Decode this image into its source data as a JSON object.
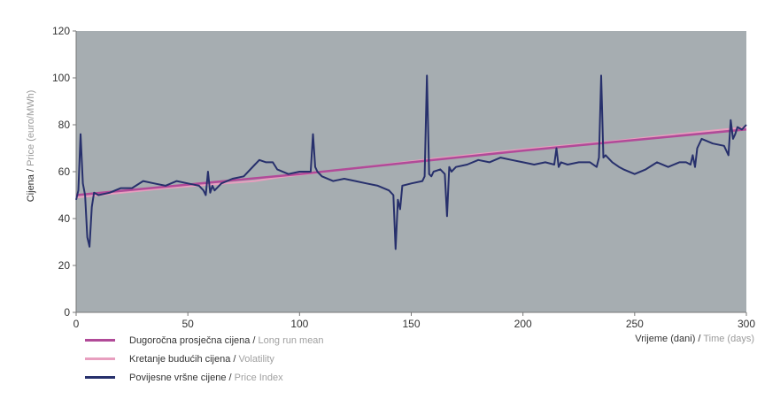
{
  "colors": {
    "plot_bg": "#a6adb1",
    "mean": "#b14a98",
    "volatility": "#e89fbf",
    "index": "#27306c"
  },
  "chart_data": {
    "type": "line",
    "xlabel": {
      "hr": "Vrijeme (dani)",
      "sep": " / ",
      "en": "Time (days)"
    },
    "ylabel": {
      "hr": "Cijena",
      "sep": " / ",
      "en": "Price (euro/MWh)"
    },
    "xlim": [
      0,
      300
    ],
    "ylim": [
      0,
      120
    ],
    "xticks": [
      "0",
      "50",
      "100",
      "150",
      "200",
      "250",
      "300"
    ],
    "yticks": [
      "0",
      "20",
      "40",
      "60",
      "80",
      "100",
      "120"
    ],
    "grid": false,
    "legend_position": "bottom-left",
    "series": [
      {
        "key": "mean",
        "name_hr": "Dugoročna prosječna cijena",
        "name_en": "Long run mean",
        "x": [
          0,
          50,
          100,
          150,
          200,
          250,
          300
        ],
        "y": [
          50,
          54.5,
          59,
          64,
          69,
          73.5,
          78
        ]
      },
      {
        "key": "volatility",
        "name_hr": "Kretanje budućih cijena",
        "name_en": "Volatility",
        "x": [
          0,
          40,
          80,
          90,
          120,
          160,
          200,
          240,
          280,
          300
        ],
        "y": [
          49,
          53,
          56,
          57.5,
          61,
          65.5,
          69.5,
          73,
          77,
          79
        ]
      },
      {
        "key": "index",
        "name_hr": "Povijesne vršne cijene",
        "name_en": "Price Index",
        "x": [
          0,
          1,
          2,
          3,
          4,
          5,
          6,
          7,
          8,
          10,
          15,
          20,
          25,
          30,
          35,
          40,
          45,
          50,
          55,
          57,
          58,
          59,
          60,
          61,
          62,
          65,
          70,
          75,
          80,
          82,
          85,
          88,
          90,
          95,
          100,
          103,
          105,
          106,
          107,
          108,
          110,
          115,
          120,
          125,
          130,
          135,
          140,
          142,
          143,
          144,
          145,
          146,
          150,
          155,
          156,
          157,
          158,
          159,
          160,
          163,
          165,
          166,
          167,
          168,
          170,
          175,
          180,
          185,
          190,
          195,
          200,
          205,
          210,
          214,
          215,
          216,
          217,
          220,
          225,
          230,
          233,
          234,
          235,
          236,
          237,
          240,
          243,
          245,
          250,
          255,
          260,
          265,
          270,
          273,
          275,
          276,
          277,
          278,
          280,
          285,
          290,
          292,
          293,
          294,
          295,
          296,
          298,
          300
        ],
        "y": [
          48,
          52,
          76,
          55,
          50,
          32,
          28,
          45,
          51,
          50,
          51,
          53,
          53,
          56,
          55,
          54,
          56,
          55,
          54,
          52,
          50,
          60,
          51,
          54,
          52,
          55,
          57,
          58,
          63,
          65,
          64,
          64,
          61,
          59,
          60,
          60,
          60,
          76,
          62,
          60,
          58,
          56,
          57,
          56,
          55,
          54,
          52,
          50,
          27,
          48,
          44,
          54,
          55,
          56,
          58,
          101,
          59,
          58,
          60,
          61,
          59,
          41,
          62,
          60,
          62,
          63,
          65,
          64,
          66,
          65,
          64,
          63,
          64,
          63,
          70,
          62,
          64,
          63,
          64,
          64,
          62,
          66,
          101,
          66,
          67,
          64,
          62,
          61,
          59,
          61,
          64,
          62,
          64,
          64,
          63,
          67,
          62,
          70,
          74,
          72,
          71,
          67,
          82,
          74,
          76,
          79,
          78,
          80
        ]
      }
    ]
  }
}
